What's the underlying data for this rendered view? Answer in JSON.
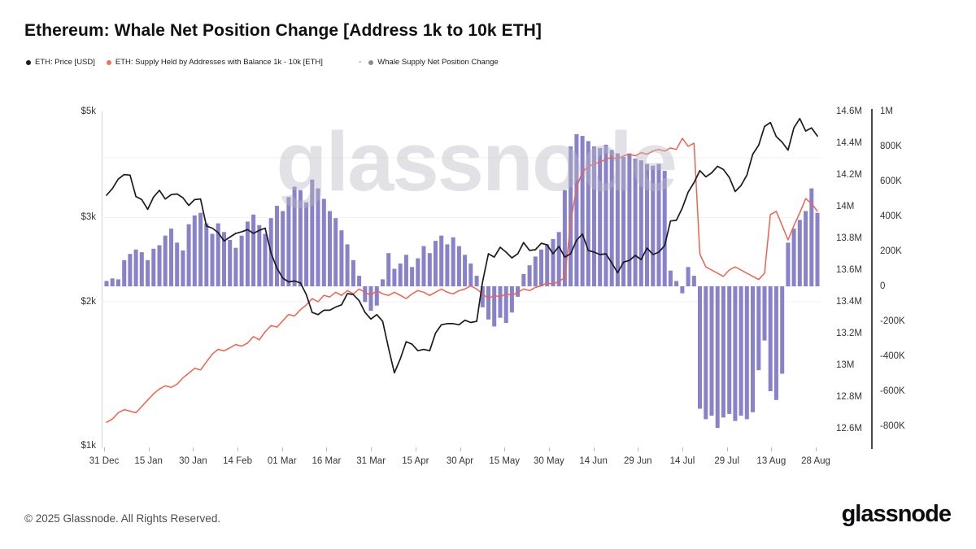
{
  "title": "Ethereum: Whale Net Position Change [Address 1k to 10k ETH]",
  "legend": {
    "separator": "-",
    "items": [
      {
        "label": "ETH: Price [USD]",
        "color": "#1b1b1f"
      },
      {
        "label": "ETH: Supply Held by Addresses with Balance 1k - 10k [ETH]",
        "color": "#f4705c"
      },
      {
        "label": "Whale Supply Net Position Change",
        "color": "#8d8a9e"
      }
    ]
  },
  "watermark": "glassnode",
  "footer": {
    "copyright": "© 2025 Glassnode. All Rights Reserved.",
    "logo": "glassnode"
  },
  "chart_data": {
    "type": "mixed",
    "title": "Ethereum: Whale Net Position Change [Address 1k to 10k ETH]",
    "x_tick_labels": [
      "31 Dec",
      "15 Jan",
      "30 Jan",
      "14 Feb",
      "01 Mar",
      "16 Mar",
      "31 Mar",
      "15 Apr",
      "30 Apr",
      "15 May",
      "30 May",
      "14 Jun",
      "29 Jun",
      "14 Jul",
      "29 Jul",
      "13 Aug",
      "28 Aug"
    ],
    "x_note": "122 samples, one every 2 days, 31 Dec through 30 Aug",
    "axes": {
      "price": {
        "side": "left",
        "scale": "log",
        "unit": "USD",
        "ticks": [
          {
            "label": "$5k",
            "value": 5000
          },
          {
            "label": "$3k",
            "value": 3000
          },
          {
            "label": "$2k",
            "value": 2000
          },
          {
            "label": "$1k",
            "value": 1000
          }
        ]
      },
      "supply": {
        "side": "right-inner",
        "scale": "linear",
        "unit": "M ETH",
        "ticks": [
          {
            "label": "14.6M",
            "value": 14.6
          },
          {
            "label": "14.4M",
            "value": 14.4
          },
          {
            "label": "14.2M",
            "value": 14.2
          },
          {
            "label": "14M",
            "value": 14.0
          },
          {
            "label": "13.8M",
            "value": 13.8
          },
          {
            "label": "13.6M",
            "value": 13.6
          },
          {
            "label": "13.4M",
            "value": 13.4
          },
          {
            "label": "13.2M",
            "value": 13.2
          },
          {
            "label": "13M",
            "value": 13.0
          },
          {
            "label": "12.8M",
            "value": 12.8
          },
          {
            "label": "12.6M",
            "value": 12.6
          }
        ]
      },
      "net": {
        "side": "right-outer",
        "scale": "linear",
        "unit": "K ETH",
        "ticks": [
          {
            "label": "1M",
            "value": 1000
          },
          {
            "label": "800K",
            "value": 800
          },
          {
            "label": "600K",
            "value": 600
          },
          {
            "label": "400K",
            "value": 400
          },
          {
            "label": "200K",
            "value": 200
          },
          {
            "label": "0",
            "value": 0
          },
          {
            "label": "-200K",
            "value": -200
          },
          {
            "label": "-400K",
            "value": -400
          },
          {
            "label": "-600K",
            "value": -600
          },
          {
            "label": "-800K",
            "value": -800
          }
        ]
      }
    },
    "series": [
      {
        "name": "ETH: Price [USD]",
        "type": "line",
        "axis": "price",
        "color": "#1b1b1f",
        "values": [
          3340,
          3450,
          3610,
          3690,
          3680,
          3320,
          3270,
          3120,
          3310,
          3420,
          3280,
          3350,
          3360,
          3300,
          3180,
          3270,
          3280,
          2880,
          2850,
          2790,
          2680,
          2730,
          2780,
          2800,
          2830,
          2780,
          2820,
          2850,
          2530,
          2350,
          2240,
          2200,
          2210,
          2190,
          2070,
          1900,
          1880,
          1920,
          1920,
          1950,
          1970,
          2080,
          2070,
          2010,
          1900,
          1840,
          1880,
          1820,
          1600,
          1420,
          1520,
          1650,
          1630,
          1580,
          1590,
          1580,
          1720,
          1790,
          1800,
          1800,
          1790,
          1830,
          1810,
          1820,
          2200,
          2520,
          2480,
          2600,
          2540,
          2470,
          2520,
          2660,
          2560,
          2570,
          2650,
          2630,
          2520,
          2610,
          2480,
          2520,
          2690,
          2770,
          2560,
          2540,
          2510,
          2520,
          2410,
          2300,
          2420,
          2440,
          2500,
          2450,
          2590,
          2510,
          2540,
          2620,
          2950,
          2960,
          3140,
          3390,
          3550,
          3760,
          3650,
          3720,
          3840,
          3780,
          3640,
          3400,
          3500,
          3680,
          4070,
          4250,
          4650,
          4740,
          4430,
          4310,
          4150,
          4620,
          4830,
          4550,
          4620,
          4440
        ]
      },
      {
        "name": "ETH: Supply Held by Addresses with Balance 1k - 10k [ETH]",
        "type": "line",
        "axis": "supply",
        "color": "#f0614e",
        "values": [
          12.64,
          12.66,
          12.7,
          12.72,
          12.71,
          12.7,
          12.74,
          12.78,
          12.82,
          12.85,
          12.87,
          12.86,
          12.88,
          12.92,
          12.95,
          12.98,
          12.97,
          13.02,
          13.07,
          13.1,
          13.09,
          13.11,
          13.13,
          13.12,
          13.14,
          13.18,
          13.16,
          13.21,
          13.25,
          13.24,
          13.28,
          13.32,
          13.31,
          13.35,
          13.38,
          13.42,
          13.4,
          13.44,
          13.43,
          13.46,
          13.44,
          13.47,
          13.45,
          13.48,
          13.46,
          13.44,
          13.47,
          13.45,
          13.44,
          13.46,
          13.44,
          13.42,
          13.45,
          13.47,
          13.46,
          13.44,
          13.46,
          13.48,
          13.46,
          13.45,
          13.47,
          13.48,
          13.5,
          13.48,
          13.45,
          13.42,
          13.44,
          13.43,
          13.45,
          13.44,
          13.46,
          13.48,
          13.47,
          13.49,
          13.5,
          13.52,
          13.51,
          13.53,
          13.55,
          13.9,
          14.12,
          14.22,
          14.25,
          14.27,
          14.28,
          14.3,
          14.31,
          14.3,
          14.32,
          14.33,
          14.32,
          14.34,
          14.33,
          14.35,
          14.36,
          14.35,
          14.37,
          14.36,
          14.43,
          14.38,
          14.4,
          13.7,
          13.62,
          13.6,
          13.58,
          13.56,
          13.6,
          13.62,
          13.6,
          13.58,
          13.56,
          13.54,
          13.58,
          13.95,
          13.97,
          13.88,
          13.79,
          13.88,
          13.96,
          14.05,
          14.02,
          13.97
        ]
      },
      {
        "name": "Whale Supply Net Position Change",
        "type": "bar",
        "axis": "net",
        "color": "#7d77c4",
        "values": [
          30,
          45,
          40,
          150,
          185,
          210,
          195,
          150,
          215,
          235,
          290,
          330,
          250,
          205,
          355,
          405,
          420,
          360,
          300,
          360,
          310,
          265,
          220,
          290,
          370,
          410,
          350,
          300,
          390,
          460,
          430,
          510,
          570,
          550,
          480,
          610,
          560,
          500,
          430,
          390,
          320,
          240,
          150,
          60,
          -90,
          -140,
          -110,
          40,
          190,
          100,
          130,
          180,
          110,
          160,
          230,
          190,
          260,
          290,
          240,
          280,
          230,
          180,
          130,
          60,
          -120,
          -190,
          -230,
          -180,
          -210,
          -150,
          -60,
          70,
          120,
          170,
          210,
          240,
          270,
          310,
          550,
          800,
          870,
          860,
          830,
          800,
          790,
          810,
          780,
          760,
          740,
          760,
          730,
          720,
          700,
          690,
          700,
          660,
          90,
          30,
          -40,
          110,
          60,
          -700,
          -760,
          -740,
          -810,
          -750,
          -730,
          -770,
          -740,
          -760,
          -720,
          -480,
          -310,
          -600,
          -650,
          -500,
          250,
          330,
          380,
          430,
          560,
          420
        ]
      }
    ]
  }
}
